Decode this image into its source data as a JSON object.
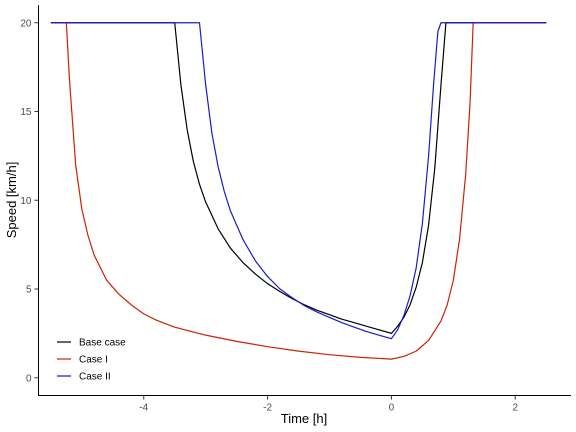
{
  "chart_data": {
    "type": "line",
    "xlabel": "Time [h]",
    "ylabel": "Speed [km/h]",
    "xlim": [
      -5.7,
      2.9
    ],
    "ylim": [
      -1,
      21
    ],
    "x_ticks": [
      -4,
      -2,
      0,
      2
    ],
    "x_tick_labels": [
      "-4",
      "-2",
      "0",
      "2"
    ],
    "y_ticks": [
      0,
      5,
      10,
      15,
      20
    ],
    "y_tick_labels": [
      "0",
      "5",
      "10",
      "15",
      "20"
    ],
    "grid": false,
    "legend_position": "bottom-left",
    "series": [
      {
        "name": "Base case",
        "color": "#000000",
        "x": [
          -5.5,
          -3.5,
          -3.4,
          -3.3,
          -3.2,
          -3.1,
          -3.0,
          -2.8,
          -2.6,
          -2.4,
          -2.2,
          -2.0,
          -1.8,
          -1.6,
          -1.4,
          -1.2,
          -1.0,
          -0.8,
          -0.6,
          -0.4,
          -0.2,
          0.0,
          0.1,
          0.2,
          0.3,
          0.4,
          0.5,
          0.6,
          0.7,
          0.8,
          0.88,
          2.5
        ],
        "y": [
          20,
          20,
          16.5,
          14.0,
          12.2,
          10.9,
          9.9,
          8.4,
          7.3,
          6.5,
          5.85,
          5.3,
          4.85,
          4.45,
          4.1,
          3.8,
          3.55,
          3.3,
          3.1,
          2.9,
          2.7,
          2.5,
          2.9,
          3.4,
          4.1,
          5.1,
          6.5,
          8.6,
          11.8,
          16.5,
          20,
          20
        ]
      },
      {
        "name": "Case I",
        "color": "#cc2200",
        "x": [
          -5.5,
          -5.25,
          -5.2,
          -5.1,
          -5.0,
          -4.9,
          -4.8,
          -4.6,
          -4.4,
          -4.2,
          -4.0,
          -3.8,
          -3.5,
          -3.0,
          -2.5,
          -2.0,
          -1.5,
          -1.0,
          -0.5,
          0.0,
          0.2,
          0.4,
          0.6,
          0.8,
          0.9,
          1.0,
          1.1,
          1.2,
          1.27,
          1.32,
          2.5
        ],
        "y": [
          20,
          20,
          16.8,
          12.0,
          9.5,
          8.0,
          6.9,
          5.5,
          4.7,
          4.1,
          3.6,
          3.25,
          2.85,
          2.4,
          2.05,
          1.75,
          1.5,
          1.3,
          1.15,
          1.05,
          1.2,
          1.5,
          2.1,
          3.2,
          4.1,
          5.5,
          7.8,
          11.5,
          15.5,
          20,
          20
        ]
      },
      {
        "name": "Case II",
        "color": "#1a1acc",
        "x": [
          -5.5,
          -3.1,
          -3.0,
          -2.9,
          -2.8,
          -2.7,
          -2.6,
          -2.4,
          -2.2,
          -2.0,
          -1.8,
          -1.6,
          -1.4,
          -1.2,
          -1.0,
          -0.8,
          -0.6,
          -0.4,
          -0.2,
          0.0,
          0.1,
          0.2,
          0.3,
          0.4,
          0.5,
          0.6,
          0.68,
          0.75,
          0.8,
          2.5
        ],
        "y": [
          20,
          20,
          16.5,
          13.8,
          11.9,
          10.5,
          9.4,
          7.8,
          6.6,
          5.7,
          5.0,
          4.5,
          4.05,
          3.7,
          3.4,
          3.1,
          2.85,
          2.6,
          2.4,
          2.2,
          2.7,
          3.5,
          4.6,
          6.2,
          8.7,
          12.5,
          16.5,
          19.5,
          20,
          20
        ]
      }
    ]
  }
}
